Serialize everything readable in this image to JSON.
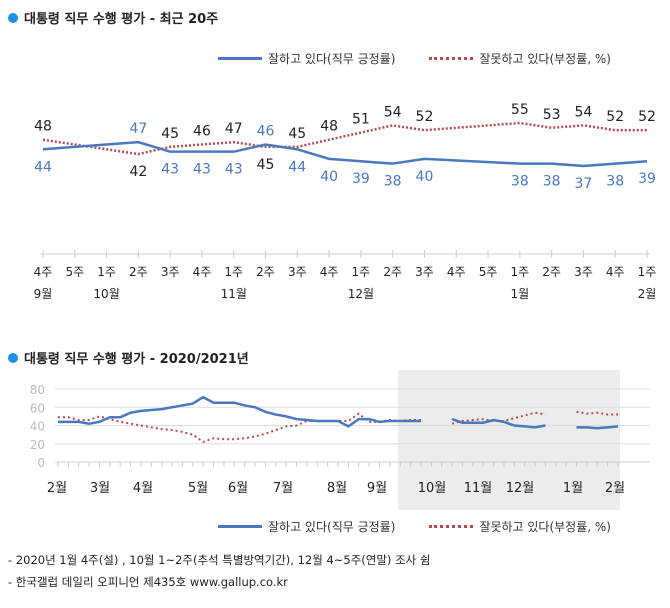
{
  "colors": {
    "positive": "#4a78c0",
    "negative": "#b54a4a",
    "bullet": "#1e90e8",
    "shade": "#ececec"
  },
  "legend": {
    "positive": "잘하고 있다(직무 긍정률)",
    "negative": "잘못하고 있다(부정률, %)"
  },
  "chart_data": [
    {
      "type": "line",
      "title": "대통령 직무 수행 평가 - 최근 20주",
      "x": [
        "4주|9월",
        "5주|",
        "1주|10월",
        "2주|",
        "3주|",
        "4주|",
        "1주|11월",
        "2주|",
        "3주|",
        "4주|",
        "1주|12월",
        "2주|",
        "3주|",
        "4주|",
        "5주|",
        "1주|1월",
        "2주|",
        "3주|",
        "4주|",
        "1주|2월"
      ],
      "series": [
        {
          "name": "잘하고 있다(직무 긍정률)",
          "values": [
            44,
            null,
            null,
            47,
            43,
            43,
            43,
            46,
            44,
            40,
            39,
            38,
            40,
            null,
            null,
            38,
            38,
            37,
            38,
            39
          ]
        },
        {
          "name": "잘못하고 있다(부정률, %)",
          "values": [
            48,
            null,
            null,
            42,
            45,
            46,
            47,
            45,
            45,
            48,
            51,
            54,
            52,
            null,
            null,
            55,
            53,
            54,
            52,
            52
          ]
        }
      ],
      "data_labels": true,
      "grid": false
    },
    {
      "type": "line",
      "title": "대통령 직무 수행 평가 - 2020/2021년",
      "months": [
        "2월",
        "3월",
        "4월",
        "5월",
        "6월",
        "7월",
        "8월",
        "9월",
        "10월",
        "11월",
        "12월",
        "1월",
        "2월"
      ],
      "yticks": [
        0,
        20,
        40,
        60,
        80
      ],
      "ylim": [
        0,
        80
      ],
      "grid": true,
      "series": [
        {
          "name": "잘하고 있다(직무 긍정률)",
          "values": [
            44,
            44,
            44,
            42,
            44,
            49,
            49,
            54,
            56,
            57,
            58,
            60,
            62,
            64,
            71,
            65,
            65,
            65,
            62,
            60,
            55,
            52,
            50,
            47,
            46,
            45,
            45,
            45,
            39,
            47,
            47,
            44,
            45,
            45,
            45,
            45,
            null,
            null,
            47,
            43,
            43,
            43,
            46,
            44,
            40,
            39,
            38,
            40,
            null,
            null,
            38,
            38,
            37,
            38,
            39
          ]
        },
        {
          "name": "잘못하고 있다(부정률, %)",
          "values": [
            49,
            49,
            46,
            46,
            50,
            47,
            44,
            42,
            40,
            38,
            36,
            35,
            33,
            30,
            22,
            26,
            25,
            25,
            26,
            28,
            31,
            35,
            39,
            40,
            45,
            45,
            45,
            45,
            45,
            53,
            44,
            44,
            46,
            45,
            46,
            46,
            null,
            null,
            42,
            45,
            46,
            47,
            45,
            45,
            48,
            51,
            54,
            52,
            null,
            null,
            55,
            53,
            54,
            52,
            52
          ]
        }
      ]
    }
  ],
  "footnotes": [
    "- 2020년 1월 4주(설) , 10월 1~2주(추석 특별방역기간), 12월 4~5주(연말) 조사 쉼",
    "- 한국갤럽 데일리 오피니언 제435호 www.gallup.co.kr"
  ]
}
